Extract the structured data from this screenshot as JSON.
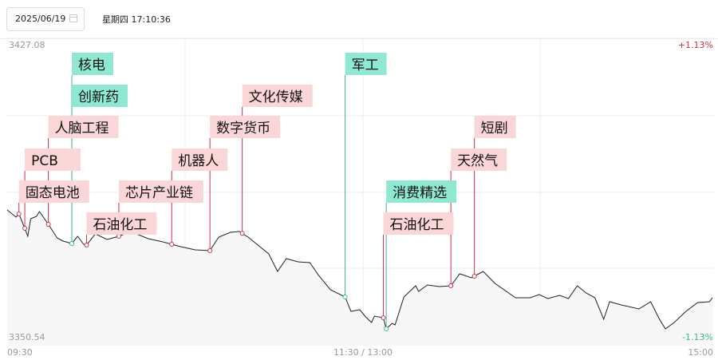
{
  "header": {
    "date_value": "2025/06/19",
    "calendar_icon": "calendar-icon",
    "weekday_time": "星期四 17:10:36"
  },
  "colors": {
    "up": "#d0304a",
    "down": "#3fb89a",
    "up_tag_bg": "#fbd6d6",
    "down_tag_bg": "#8ee8d2",
    "line": "#222222"
  },
  "chart_data": {
    "type": "line",
    "ylim": [
      3350.54,
      3427.08
    ],
    "pre_close": 3388.81,
    "y_top_label": "3427.08",
    "y_bottom_label": "3350.54",
    "pct_top_label": "+1.13%",
    "pct_bottom_label": "-1.13%",
    "x_tick_labels": [
      "09:30",
      "11:30 / 13:00",
      "15:00"
    ],
    "grid": true,
    "series": [
      {
        "values": [
          [
            "09:30",
            3384.23
          ],
          [
            "09:33",
            3382.43
          ],
          [
            "09:34",
            3383.23
          ],
          [
            "09:36",
            3379.64
          ],
          [
            "09:37",
            3377.65
          ],
          [
            "09:38",
            3382.03
          ],
          [
            "09:40",
            3382.63
          ],
          [
            "09:41",
            3383.83
          ],
          [
            "09:44",
            3380.64
          ],
          [
            "09:47",
            3377.25
          ],
          [
            "09:49",
            3376.45
          ],
          [
            "09:52",
            3375.85
          ],
          [
            "09:54",
            3377.65
          ],
          [
            "09:56",
            3375.65
          ],
          [
            "09:57",
            3375.46
          ],
          [
            "10:00",
            3378.25
          ],
          [
            "10:04",
            3376.85
          ],
          [
            "10:08",
            3377.65
          ],
          [
            "10:12",
            3378.84
          ],
          [
            "10:18",
            3377.05
          ],
          [
            "10:23",
            3376.25
          ],
          [
            "10:29",
            3375.06
          ],
          [
            "10:34",
            3374.26
          ],
          [
            "10:39",
            3374.06
          ],
          [
            "10:42",
            3377.45
          ],
          [
            "10:46",
            3378.65
          ],
          [
            "10:49",
            3378.84
          ],
          [
            "10:52",
            3377.45
          ],
          [
            "10:55",
            3375.65
          ],
          [
            "10:59",
            3373.26
          ],
          [
            "11:02",
            3368.88
          ],
          [
            "11:05",
            3372.07
          ],
          [
            "11:09",
            3371.27
          ],
          [
            "11:13",
            3371.07
          ],
          [
            "11:16",
            3367.88
          ],
          [
            "11:20",
            3364.29
          ],
          [
            "11:25",
            3362.5
          ],
          [
            "11:27",
            3358.91
          ],
          [
            "11:30",
            3359.31
          ],
          [
            "13:02",
            3357.52
          ],
          [
            "13:04",
            3356.12
          ],
          [
            "13:05",
            3357.72
          ],
          [
            "13:08",
            3357.32
          ],
          [
            "13:09",
            3354.53
          ],
          [
            "13:11",
            3355.92
          ],
          [
            "13:12",
            3355.52
          ],
          [
            "13:15",
            3362.5
          ],
          [
            "13:19",
            3365.29
          ],
          [
            "13:20",
            3363.9
          ],
          [
            "13:23",
            3365.49
          ],
          [
            "13:27",
            3365.09
          ],
          [
            "13:31",
            3365.29
          ],
          [
            "13:34",
            3368.28
          ],
          [
            "13:38",
            3367.28
          ],
          [
            "13:42",
            3368.88
          ],
          [
            "13:46",
            3365.89
          ],
          [
            "13:53",
            3362.3
          ],
          [
            "13:58",
            3362.3
          ],
          [
            "14:01",
            3363.1
          ],
          [
            "14:04",
            3362.1
          ],
          [
            "14:08",
            3362.9
          ],
          [
            "14:11",
            3362.1
          ],
          [
            "14:14",
            3365.29
          ],
          [
            "14:17",
            3363.5
          ],
          [
            "14:20",
            3362.3
          ],
          [
            "14:23",
            3356.92
          ],
          [
            "14:25",
            3361.3
          ],
          [
            "14:29",
            3360.51
          ],
          [
            "14:35",
            3359.51
          ],
          [
            "14:39",
            3361.3
          ],
          [
            "14:42",
            3356.92
          ],
          [
            "14:44",
            3354.53
          ],
          [
            "14:47",
            3356.12
          ],
          [
            "14:51",
            3358.91
          ],
          [
            "14:55",
            3361.1
          ],
          [
            "14:59",
            3361.3
          ],
          [
            "15:00",
            3362.3
          ]
        ]
      }
    ],
    "annotations": [
      {
        "label": "核电",
        "time": "09:52",
        "direction": "down"
      },
      {
        "label": "创新药",
        "time": "09:52",
        "direction": "down"
      },
      {
        "label": "人脑工程",
        "time": "09:44",
        "direction": "up"
      },
      {
        "label": "PCB",
        "time": "09:36",
        "direction": "up"
      },
      {
        "label": "固态电池",
        "time": "09:34",
        "direction": "up"
      },
      {
        "label": "石油化工",
        "time": "09:57",
        "direction": "up"
      },
      {
        "label": "芯片产业链",
        "time": "10:08",
        "direction": "up"
      },
      {
        "label": "机器人",
        "time": "10:26",
        "direction": "up"
      },
      {
        "label": "数字货币",
        "time": "10:39",
        "direction": "up"
      },
      {
        "label": "文化传媒",
        "time": "10:50",
        "direction": "up"
      },
      {
        "label": "军工",
        "time": "11:25",
        "direction": "down"
      },
      {
        "label": "消费精选",
        "time": "13:09",
        "direction": "down"
      },
      {
        "label": "石油化工",
        "time": "13:08",
        "direction": "up"
      },
      {
        "label": "天然气",
        "time": "13:31",
        "direction": "up"
      },
      {
        "label": "短剧",
        "time": "13:39",
        "direction": "up"
      }
    ]
  }
}
